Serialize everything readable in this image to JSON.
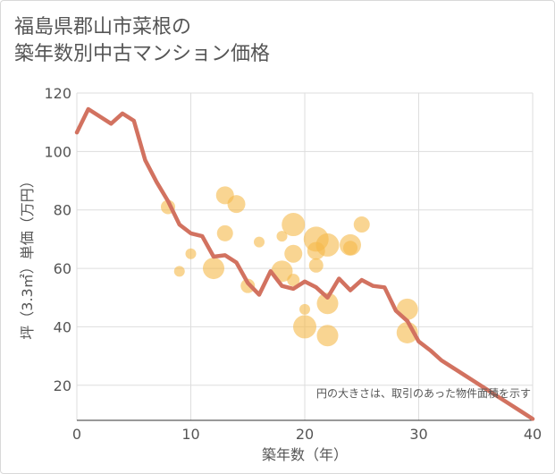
{
  "title_lines": [
    "福島県郡山市菜根の",
    "築年数別中古マンション価格"
  ],
  "chart_data": {
    "type": "scatter",
    "title": "福島県郡山市菜根の築年数別中古マンション価格",
    "xlabel": "築年数（年）",
    "ylabel": "坪（3.3㎡）単価（万円）",
    "xlim": [
      0,
      40
    ],
    "ylim": [
      8,
      120
    ],
    "xticks": [
      0,
      10,
      20,
      30,
      40
    ],
    "yticks": [
      20,
      40,
      60,
      80,
      100,
      120
    ],
    "grid": true,
    "note": "円の大きさは、取引のあった物件面積を示す",
    "colors": {
      "line": "#d27260",
      "bubble": "#f5b94a",
      "grid": "#dddddd"
    },
    "line": {
      "x": [
        0,
        1,
        2,
        3,
        4,
        5,
        6,
        7,
        8,
        9,
        10,
        11,
        12,
        13,
        14,
        15,
        16,
        17,
        18,
        19,
        20,
        21,
        22,
        23,
        24,
        25,
        26,
        27,
        28,
        29,
        30,
        31,
        32,
        33,
        34,
        35,
        36,
        37,
        38,
        39,
        40
      ],
      "y": [
        106.5,
        114.5,
        112,
        109.5,
        113,
        110.5,
        97,
        89.5,
        83,
        75,
        72,
        71,
        64,
        64.5,
        62,
        55,
        51,
        59,
        54,
        53,
        55.5,
        53.5,
        50,
        56.5,
        52.5,
        56,
        54,
        53.5,
        45.5,
        42,
        35,
        32,
        28.5,
        26,
        23.5,
        21,
        18.5,
        16,
        13.5,
        11,
        8.5
      ]
    },
    "bubbles": [
      {
        "x": 8,
        "y": 81,
        "r": 8
      },
      {
        "x": 9,
        "y": 59,
        "r": 6
      },
      {
        "x": 10,
        "y": 65,
        "r": 6
      },
      {
        "x": 12,
        "y": 60,
        "r": 12
      },
      {
        "x": 13,
        "y": 85,
        "r": 10
      },
      {
        "x": 13,
        "y": 72,
        "r": 9
      },
      {
        "x": 14,
        "y": 82,
        "r": 10
      },
      {
        "x": 15,
        "y": 54,
        "r": 8
      },
      {
        "x": 16,
        "y": 69,
        "r": 6
      },
      {
        "x": 18,
        "y": 71,
        "r": 6
      },
      {
        "x": 18,
        "y": 59,
        "r": 12
      },
      {
        "x": 19,
        "y": 75,
        "r": 13
      },
      {
        "x": 19,
        "y": 65,
        "r": 10
      },
      {
        "x": 19,
        "y": 56,
        "r": 7
      },
      {
        "x": 20,
        "y": 46,
        "r": 6
      },
      {
        "x": 20,
        "y": 40,
        "r": 13
      },
      {
        "x": 21,
        "y": 70,
        "r": 14
      },
      {
        "x": 21,
        "y": 66,
        "r": 10
      },
      {
        "x": 21,
        "y": 61,
        "r": 8
      },
      {
        "x": 22,
        "y": 68,
        "r": 13
      },
      {
        "x": 22,
        "y": 48,
        "r": 12
      },
      {
        "x": 22,
        "y": 37,
        "r": 12
      },
      {
        "x": 24,
        "y": 68,
        "r": 12
      },
      {
        "x": 24,
        "y": 67,
        "r": 8
      },
      {
        "x": 25,
        "y": 75,
        "r": 9
      },
      {
        "x": 29,
        "y": 46,
        "r": 12
      },
      {
        "x": 29,
        "y": 38,
        "r": 12
      }
    ]
  }
}
